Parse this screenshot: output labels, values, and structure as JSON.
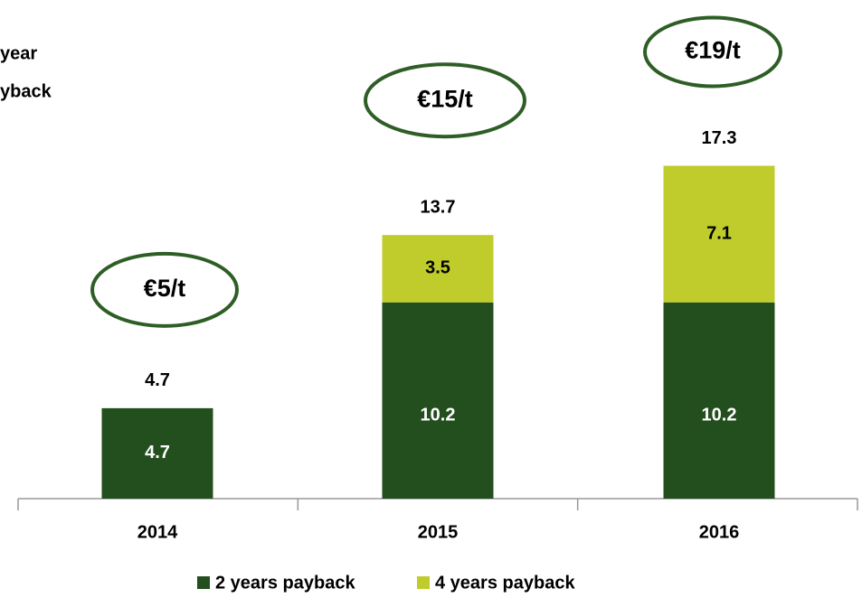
{
  "chart_data": {
    "type": "bar",
    "stacked": true,
    "annotations": [
      "year",
      "yback"
    ],
    "categories": [
      "2014",
      "2015",
      "2016"
    ],
    "series": [
      {
        "name": "2 years payback",
        "color": "#234f1e",
        "values": [
          4.7,
          10.2,
          10.2
        ]
      },
      {
        "name": "4 years payback",
        "color": "#bfcc2b",
        "values": [
          null,
          3.5,
          7.1
        ]
      }
    ],
    "totals": [
      4.7,
      13.7,
      17.3
    ],
    "price_labels": [
      "€5/t",
      "€15/t",
      "€19/t"
    ],
    "ellipse_color": "#2e5e26"
  }
}
